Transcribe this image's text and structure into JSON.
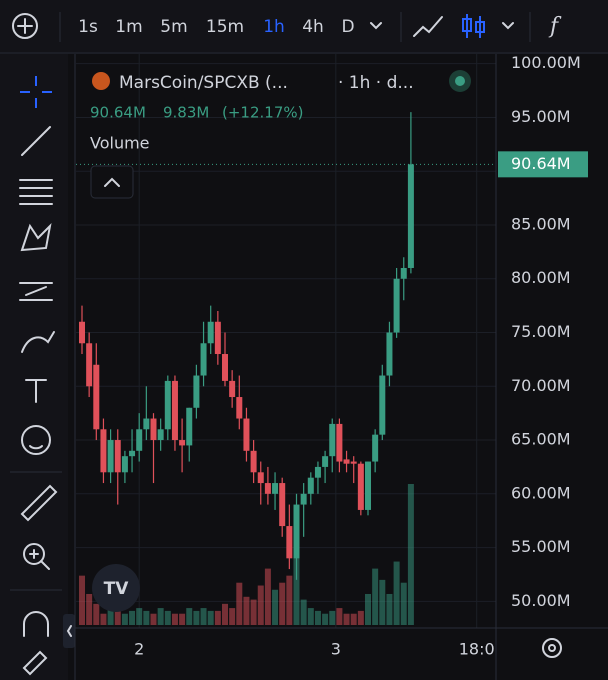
{
  "toolbar": {
    "intervals": [
      "1s",
      "1m",
      "5m",
      "15m",
      "1h",
      "4h",
      "D"
    ]
  },
  "legend": {
    "symbol": "MarsCoin/SPCXB (...",
    "details": "· 1h · d...",
    "price": "90.64M",
    "change": "9.83M",
    "change_percent": "(+12.17%)",
    "indicator": "Volume"
  },
  "chart_data": {
    "type": "candlestick",
    "up_color": "#3a9d83",
    "down_color": "#e0515a",
    "open": [
      76,
      74,
      72,
      66,
      62,
      65,
      62,
      63.5,
      64,
      66,
      67,
      65,
      66,
      70.5,
      65,
      64.5,
      68,
      71,
      74,
      76,
      73,
      70.5,
      69,
      67,
      64,
      62,
      61,
      60,
      61,
      57,
      54,
      59,
      60,
      61.5,
      62.5,
      63.5,
      66.5,
      63.2,
      63,
      62.8,
      58.5,
      63,
      65.5,
      71,
      75,
      80,
      81
    ],
    "high": [
      77.5,
      75,
      74,
      67,
      66,
      66,
      64,
      66,
      67.5,
      70,
      67.5,
      67,
      71,
      71,
      67,
      68,
      72,
      76,
      77.5,
      77,
      75,
      71.5,
      71,
      68,
      65,
      63,
      62.5,
      62,
      61.5,
      59,
      60,
      61,
      62,
      63,
      64,
      67,
      67,
      64,
      63.5,
      63,
      63,
      66,
      72,
      76,
      81,
      82,
      95.5
    ],
    "low": [
      73,
      69,
      65,
      61,
      61,
      59,
      61,
      62,
      63,
      65,
      61,
      64,
      65,
      64,
      62,
      63,
      67,
      70,
      73,
      72,
      70,
      68,
      66,
      63,
      61,
      59,
      59,
      58.5,
      56,
      53,
      52,
      56,
      59,
      60,
      61,
      62,
      62,
      62,
      61,
      58,
      58,
      62,
      65,
      70,
      74.5,
      78,
      80.5
    ],
    "close": [
      74,
      70,
      66,
      62,
      65,
      62,
      63.5,
      64,
      66,
      67,
      65,
      66,
      70.5,
      65,
      64.5,
      68,
      71,
      74,
      76,
      73,
      70.5,
      69,
      67,
      64,
      62,
      61,
      60,
      61,
      57,
      54,
      59,
      60,
      61.5,
      62.5,
      63.5,
      66.5,
      63,
      62.8,
      62.8,
      58.5,
      63,
      65.5,
      71,
      75,
      80,
      81,
      90.64
    ],
    "volume": [
      35,
      22,
      15,
      8,
      12,
      10,
      8,
      10,
      12,
      10,
      8,
      12,
      10,
      8,
      8,
      12,
      10,
      12,
      10,
      10,
      15,
      12,
      30,
      20,
      18,
      28,
      40,
      25,
      30,
      35,
      50,
      18,
      12,
      10,
      8,
      10,
      12,
      8,
      8,
      10,
      22,
      40,
      32,
      22,
      45,
      30,
      100
    ],
    "vlim": [
      0,
      100
    ],
    "ylim": [
      47.8,
      100.9
    ],
    "yticks": [
      {
        "value": 100,
        "label": "100.00M"
      },
      {
        "value": 95,
        "label": "95.00M"
      },
      {
        "value": 90,
        "label": "90.00M"
      },
      {
        "value": 85,
        "label": "85.00M"
      },
      {
        "value": 80,
        "label": "80.00M"
      },
      {
        "value": 75,
        "label": "75.00M"
      },
      {
        "value": 70,
        "label": "70.00M"
      },
      {
        "value": 65,
        "label": "65.00M"
      },
      {
        "value": 60,
        "label": "60.00M"
      },
      {
        "value": 55,
        "label": "55.00M"
      },
      {
        "value": 50,
        "label": "50.00M"
      }
    ],
    "xticks": [
      {
        "value": 8,
        "label": "2"
      },
      {
        "value": 35.5,
        "label": "3"
      },
      {
        "value": 55.2,
        "label": "18:0"
      }
    ],
    "last_price": {
      "value": 90.64,
      "label": "90.64M"
    },
    "grid": true
  }
}
